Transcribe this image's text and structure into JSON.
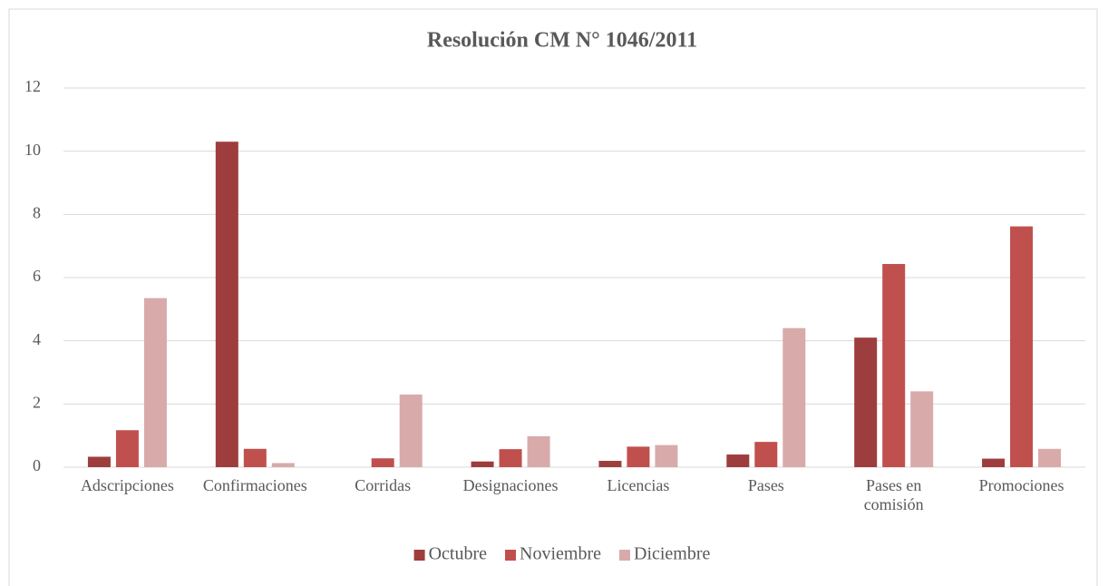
{
  "chart_data": {
    "type": "bar",
    "title": "Resolución CM N° 1046/2011",
    "categories": [
      "Adscripciones",
      "Confirmaciones",
      "Corridas",
      "Designaciones",
      "Licencias",
      "Pases",
      "Pases en comisión",
      "Promociones"
    ],
    "series": [
      {
        "name": "Octubre",
        "color": "#9e3d3d",
        "values": [
          0.33,
          10.3,
          0,
          0.18,
          0.2,
          0.4,
          4.1,
          0.27
        ]
      },
      {
        "name": "Noviembre",
        "color": "#c0504d",
        "values": [
          1.17,
          0.58,
          0.28,
          0.57,
          0.65,
          0.8,
          6.43,
          7.62
        ]
      },
      {
        "name": "Diciembre",
        "color": "#d9aaaa",
        "values": [
          5.35,
          0.13,
          2.3,
          0.98,
          0.7,
          4.4,
          2.4,
          0.58
        ]
      }
    ],
    "ylim": [
      0,
      12
    ],
    "yticks": [
      0,
      2,
      4,
      6,
      8,
      10,
      12
    ],
    "grid": true,
    "legend": "bottom"
  }
}
